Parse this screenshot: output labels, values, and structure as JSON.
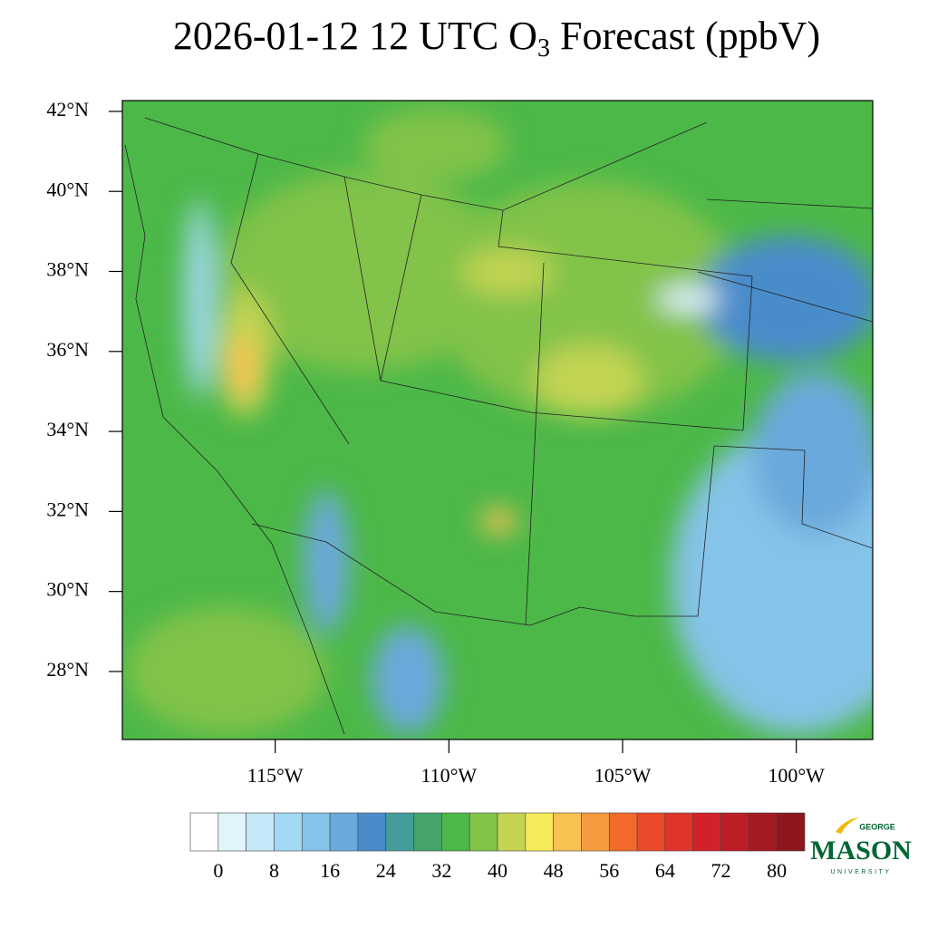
{
  "title": {
    "main": "2026-01-12 12 UTC O",
    "subscript": "3",
    "rest": " Forecast (ppbV)"
  },
  "map": {
    "latlim": [
      26.3,
      42.27
    ],
    "lonlim": [
      -119.4,
      -97.8
    ],
    "latticks": [
      {
        "value": 42,
        "label": "42°N"
      },
      {
        "value": 40,
        "label": "40°N"
      },
      {
        "value": 38,
        "label": "38°N"
      },
      {
        "value": 36,
        "label": "36°N"
      },
      {
        "value": 34,
        "label": "34°N"
      },
      {
        "value": 32,
        "label": "32°N"
      },
      {
        "value": 30,
        "label": "30°N"
      },
      {
        "value": 28,
        "label": "28°N"
      }
    ],
    "lonticks": [
      {
        "value": -115,
        "label": "115°W"
      },
      {
        "value": -110,
        "label": "110°W"
      },
      {
        "value": -105,
        "label": "105°W"
      },
      {
        "value": -100,
        "label": "100°W"
      }
    ]
  },
  "colorbar": {
    "range": [
      -4,
      84
    ],
    "colors": [
      "#ffffff",
      "#e1f3fb",
      "#c4e8f8",
      "#a3d9f4",
      "#86c3e8",
      "#6aa9dc",
      "#4a8cca",
      "#459d9a",
      "#44a46a",
      "#4cb848",
      "#82c34a",
      "#c3d452",
      "#f6e95a",
      "#f9c152",
      "#f69a3f",
      "#f16a2b",
      "#e84a2a",
      "#e0342b",
      "#d1222a",
      "#bd1d25",
      "#a41a21",
      "#8c161c"
    ],
    "ticks": [
      0,
      8,
      16,
      24,
      32,
      40,
      48,
      56,
      64,
      72,
      80
    ]
  },
  "logo": {
    "top": "GEORGE",
    "name": "MASON",
    "bottom": "UNIVERSITY"
  }
}
